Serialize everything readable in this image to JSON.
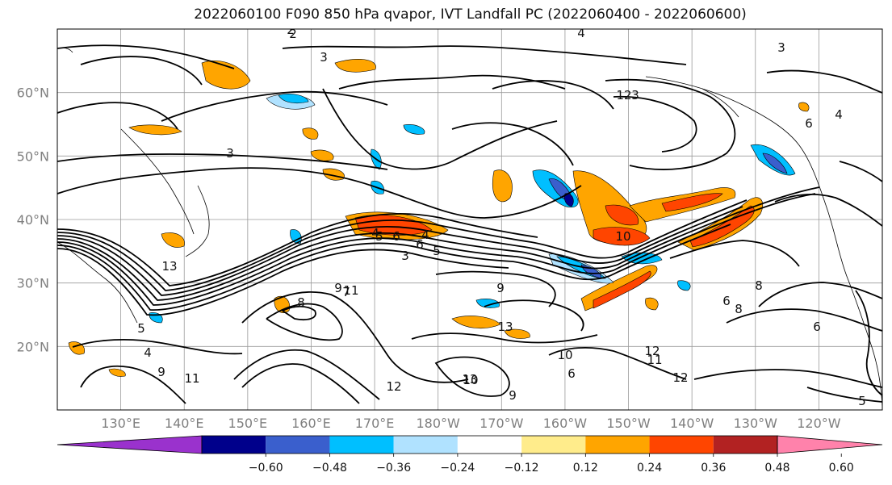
{
  "title": "2022060100 F090 850 hPa qvapor, IVT Landfall PC (2022060400 - 2022060600)",
  "chart_data": {
    "type": "heatmap",
    "title": "2022060100 F090 850 hPa qvapor, IVT Landfall PC (2022060400 - 2022060600)",
    "x_ticks": [
      "130°E",
      "140°E",
      "150°E",
      "160°E",
      "170°E",
      "180°W",
      "170°W",
      "160°W",
      "150°W",
      "140°W",
      "130°W",
      "120°W"
    ],
    "y_ticks": [
      "20°N",
      "30°N",
      "40°N",
      "50°N",
      "60°N"
    ],
    "lon_range": [
      120,
      250
    ],
    "lat_range": [
      10,
      70
    ],
    "grid": true,
    "colorbar": {
      "orientation": "horizontal",
      "extend": "both",
      "levels": [
        -0.72,
        -0.6,
        -0.48,
        -0.36,
        -0.24,
        -0.12,
        0.12,
        0.24,
        0.36,
        0.48,
        0.6,
        0.72
      ],
      "tick_labels": [
        "−0.60",
        "−0.48",
        "−0.36",
        "−0.24",
        "−0.12",
        "0.12",
        "0.24",
        "0.36",
        "0.48",
        "0.60"
      ],
      "colors": [
        "#9a32cd",
        "#00008b",
        "#3a5fcd",
        "#00bfff",
        "#b0e2ff",
        "#ffffff",
        "#ffec8b",
        "#ffa500",
        "#ff4500",
        "#b22222",
        "#ff82ab"
      ]
    },
    "contour_labels": [
      "2",
      "3",
      "3",
      "4",
      "5",
      "6",
      "3",
      "5",
      "6",
      "4",
      "9",
      "7",
      "5",
      "4",
      "9",
      "11",
      "13",
      "12",
      "12",
      "13",
      "10",
      "12",
      "11",
      "9",
      "8",
      "6",
      "8",
      "10",
      "12",
      "6",
      "5",
      "6",
      "3",
      "2",
      "4",
      "3",
      "4",
      "6",
      "13",
      "8",
      "9",
      "11",
      "10"
    ]
  }
}
